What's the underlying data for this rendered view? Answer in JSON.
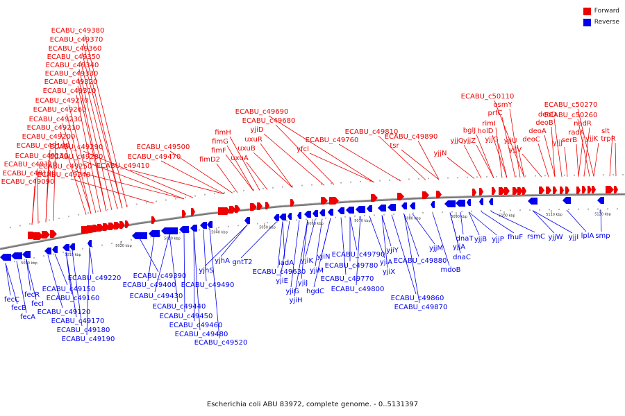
{
  "legend": {
    "forward": {
      "label": "Forward",
      "color": "#ee0000"
    },
    "reverse": {
      "label": "Reverse",
      "color": "#0000ee"
    }
  },
  "caption": "Escherichia coli ABU 83972, complete genome. - 0..5131397",
  "ticks": [
    "5000 kbp",
    "5010 kbp",
    "5020 kbp",
    "5030 kbp",
    "5040 kbp",
    "5050 kbp",
    "5060 kbp",
    "5070 kbp",
    "5080 kbp",
    "5090 kbp",
    "5100 kbp",
    "5110 kbp",
    "5120 kbp"
  ],
  "forward_genes": [
    "ECABU_c49090",
    "ECABU_c49100",
    "ECABU_c49110",
    "ECABU_c49130",
    "ECABU_c49140",
    "ECABU_c49200",
    "ECABU_c49210",
    "ECABU_c49230",
    "ECABU_c49260",
    "ECABU_c49270",
    "ECABU_c49310",
    "ECABU_c49320",
    "ECABU_c49330",
    "ECABU_c49340",
    "ECABU_c49350",
    "ECABU_c49360",
    "ECABU_c49370",
    "ECABU_c49380",
    "ECABU_c49240",
    "ECABU_c49250",
    "ECABU_c49280",
    "ECABU_c49290",
    "ECABU_c49410",
    "ECABU_c49470",
    "ECABU_c49500",
    "fimD2",
    "fimF",
    "fimG",
    "fimH",
    "uxuA",
    "uxuB",
    "uxuR",
    "yjiD",
    "ECABU_c49680",
    "ECABU_c49690",
    "yfcI",
    "ECABU_c49760",
    "ECABU_c49810",
    "tsr",
    "ECABU_c49890",
    "yjjN",
    "yjjQ",
    "bglJ",
    "yjjZ",
    "rimI",
    "holD",
    "yjjG",
    "prfC",
    "osmY",
    "ECABU_c50110",
    "yjjU",
    "yjjV",
    "deoC",
    "deoA",
    "deoB",
    "deoD",
    "yjjJ",
    "serB",
    "radA",
    "nadR",
    "ECABU_c50260",
    "ECABU_c50270",
    "yjjK",
    "slt",
    "trpR"
  ],
  "reverse_genes": [
    "fecC",
    "fecB",
    "fecA",
    "fecR",
    "fecI",
    "ECABU_c49120",
    "ECABU_c49150",
    "ECABU_c49160",
    "ECABU_c49170",
    "ECABU_c49180",
    "ECABU_c49190",
    "ECABU_c49220",
    "ECABU_c49390",
    "ECABU_c49400",
    "ECABU_c49430",
    "ECABU_c49440",
    "ECABU_c49450",
    "ECABU_c49460",
    "ECABU_c49480",
    "ECABU_c49490",
    "ECABU_c49520",
    "yjhS",
    "yjhA",
    "gntT2",
    "iadA",
    "ECABU_c49630",
    "yjiE",
    "yjiG",
    "yjiH",
    "yjiJ",
    "yjiK",
    "yjiM",
    "hgdC",
    "yjiN",
    "ECABU_c49770",
    "ECABU_c49780",
    "ECABU_c49790",
    "ECABU_c49800",
    "yjiA",
    "yjiX",
    "yjiY",
    "ECABU_c49860",
    "ECABU_c49870",
    "ECABU_c49880",
    "yjjM",
    "mdoB",
    "yjjA",
    "dnaC",
    "dnaT",
    "yjjB",
    "yjjP",
    "fhuF",
    "rsmC",
    "yjjW",
    "yjjI",
    "lplA",
    "smp"
  ]
}
